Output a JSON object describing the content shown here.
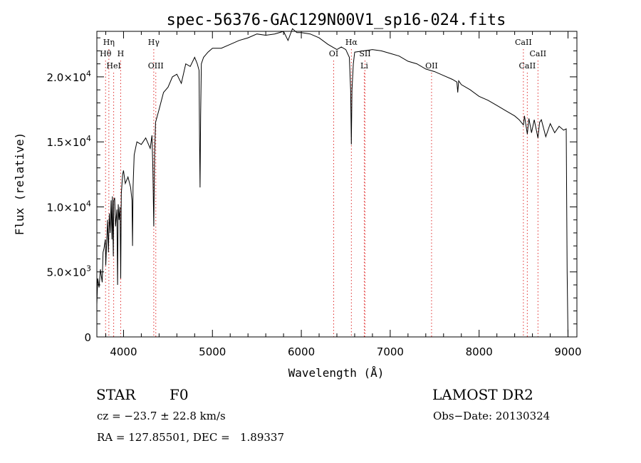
{
  "chart_data": {
    "type": "line",
    "title": "spec-56376-GAC129N00V1_sp16-024.fits",
    "xlabel": "Wavelength (Å)",
    "ylabel": "Flux (relative)",
    "xlim": [
      3700,
      9100
    ],
    "ylim": [
      0,
      23500
    ],
    "grid": false,
    "x_ticks": [
      {
        "value": 4000,
        "label": "4000"
      },
      {
        "value": 5000,
        "label": "5000"
      },
      {
        "value": 6000,
        "label": "6000"
      },
      {
        "value": 7000,
        "label": "7000"
      },
      {
        "value": 8000,
        "label": "8000"
      },
      {
        "value": 9000,
        "label": "9000"
      }
    ],
    "y_ticks": [
      {
        "value": 0,
        "mant": "0",
        "exp": ""
      },
      {
        "value": 5000,
        "mant": "5.0×10",
        "exp": "3"
      },
      {
        "value": 10000,
        "mant": "1.0×10",
        "exp": "4"
      },
      {
        "value": 15000,
        "mant": "1.5×10",
        "exp": "4"
      },
      {
        "value": 20000,
        "mant": "2.0×10",
        "exp": "4"
      }
    ],
    "series": [
      {
        "color": "#000000",
        "x": [
          3700,
          3710,
          3725,
          3740,
          3760,
          3770,
          3780,
          3795,
          3800,
          3820,
          3830,
          3840,
          3850,
          3860,
          3870,
          3875,
          3885,
          3890,
          3900,
          3910,
          3925,
          3933,
          3940,
          3950,
          3960,
          3968,
          3975,
          3990,
          4000,
          4020,
          4050,
          4080,
          4095,
          4101,
          4107,
          4120,
          4150,
          4200,
          4250,
          4300,
          4320,
          4330,
          4340,
          4350,
          4360,
          4400,
          4450,
          4500,
          4550,
          4600,
          4650,
          4700,
          4750,
          4800,
          4830,
          4850,
          4855,
          4861,
          4867,
          4875,
          4900,
          4950,
          5000,
          5100,
          5200,
          5300,
          5400,
          5500,
          5600,
          5700,
          5800,
          5850,
          5900,
          5950,
          6000,
          6100,
          6200,
          6300,
          6400,
          6450,
          6500,
          6540,
          6555,
          6563,
          6570,
          6585,
          6600,
          6700,
          6800,
          6900,
          7000,
          7100,
          7200,
          7300,
          7400,
          7500,
          7600,
          7700,
          7750,
          7760,
          7770,
          7800,
          7900,
          8000,
          8100,
          8200,
          8300,
          8400,
          8450,
          8498,
          8510,
          8542,
          8560,
          8590,
          8620,
          8662,
          8680,
          8700,
          8750,
          8800,
          8850,
          8900,
          8950,
          8980,
          8990,
          9000
        ],
        "y": [
          2500,
          4500,
          3800,
          5200,
          4200,
          6500,
          6800,
          7500,
          5500,
          9000,
          6500,
          9500,
          8000,
          10500,
          7500,
          10800,
          6200,
          10500,
          10700,
          8500,
          9800,
          4000,
          10200,
          9000,
          10000,
          4500,
          11000,
          12500,
          12800,
          11800,
          12300,
          11500,
          10500,
          7000,
          11500,
          14000,
          15000,
          14800,
          15300,
          14500,
          15500,
          13000,
          8500,
          14000,
          16500,
          17500,
          18800,
          19200,
          20000,
          20200,
          19500,
          21000,
          20800,
          21500,
          21000,
          20500,
          15000,
          11500,
          17000,
          21000,
          21500,
          21900,
          22200,
          22200,
          22500,
          22800,
          23000,
          23300,
          23200,
          23300,
          23500,
          22800,
          23700,
          23400,
          23400,
          23300,
          23000,
          22500,
          22100,
          22300,
          22100,
          21500,
          19000,
          14800,
          19000,
          21000,
          21900,
          22000,
          22100,
          22000,
          21800,
          21600,
          21200,
          21000,
          20600,
          20400,
          20100,
          19800,
          19600,
          18800,
          19700,
          19400,
          19000,
          18500,
          18200,
          17800,
          17400,
          17000,
          16700,
          16300,
          17000,
          15600,
          16800,
          15700,
          16700,
          15300,
          16500,
          16700,
          15400,
          16400,
          15700,
          16200,
          15900,
          16000,
          5000,
          0
        ]
      }
    ],
    "annotations": [
      {
        "label": "Hη",
        "x": 3835,
        "row": 1,
        "line": true
      },
      {
        "label": "Hθ",
        "x": 3798,
        "row": 2,
        "line": true
      },
      {
        "label": "H",
        "x": 3968,
        "row": 2,
        "line": true
      },
      {
        "label": "HeI",
        "x": 3889,
        "row": 3,
        "line": true
      },
      {
        "label": "Hγ",
        "x": 4340,
        "row": 1,
        "line": true
      },
      {
        "label": "OIII",
        "x": 4363,
        "row": 3,
        "line": true
      },
      {
        "label": "Hα",
        "x": 6563,
        "row": 1,
        "line": true
      },
      {
        "label": "OI",
        "x": 6364,
        "row": 2,
        "line": true
      },
      {
        "label": "SII",
        "x": 6716,
        "row": 2,
        "line": true
      },
      {
        "label": "Li",
        "x": 6708,
        "row": 3,
        "line": true
      },
      {
        "label": "OII",
        "x": 7465,
        "row": 3,
        "line": true
      },
      {
        "label": "CaII",
        "x": 8498,
        "row": 1,
        "line": true
      },
      {
        "label": "CaII",
        "x": 8662,
        "row": 2,
        "line": true
      },
      {
        "label": "CaII",
        "x": 8542,
        "row": 3,
        "line": true
      }
    ]
  },
  "info": {
    "class_label": "STAR",
    "subclass": "F0",
    "survey": "LAMOST DR2",
    "cz": "cz = −23.7 ± 22.8 km/s",
    "obs_date": "Obs−Date: 20130324",
    "coords": "RA = 127.85501, DEC =   1.89337"
  }
}
